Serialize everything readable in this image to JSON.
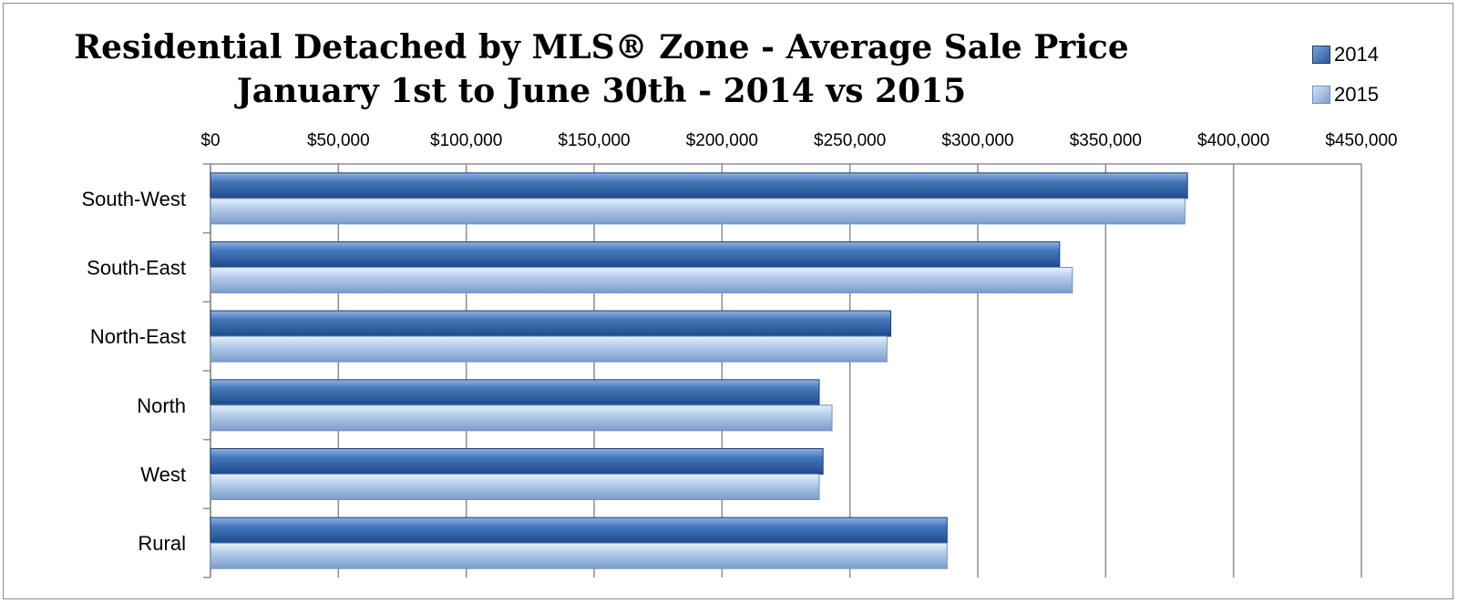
{
  "chart_data": {
    "type": "bar",
    "orientation": "horizontal",
    "title_lines": [
      "Residential Detached by MLS® Zone - Average Sale Price",
      "January 1st  to June 30th - 2014 vs 2015"
    ],
    "categories": [
      "South-West",
      "South-East",
      "North-East",
      "North",
      "West",
      "Rural"
    ],
    "series": [
      {
        "name": "2014",
        "values": [
          382000,
          332000,
          266000,
          238000,
          239500,
          288000
        ]
      },
      {
        "name": "2015",
        "values": [
          381000,
          337000,
          264500,
          243000,
          238000,
          288000
        ]
      }
    ],
    "x_ticks": [
      "$0",
      "$50,000",
      "$100,000",
      "$150,000",
      "$200,000",
      "$250,000",
      "$300,000",
      "$350,000",
      "$400,000",
      "$450,000"
    ],
    "xlim": [
      0,
      450000
    ],
    "x_axis_position": "top",
    "grid": "vertical",
    "legend_position": "top-right"
  },
  "colors": {
    "series_2014": "#3a6db0",
    "series_2015": "#a9c3e8",
    "gridline": "#8c8c8c",
    "axis": "#8c8c8c"
  }
}
